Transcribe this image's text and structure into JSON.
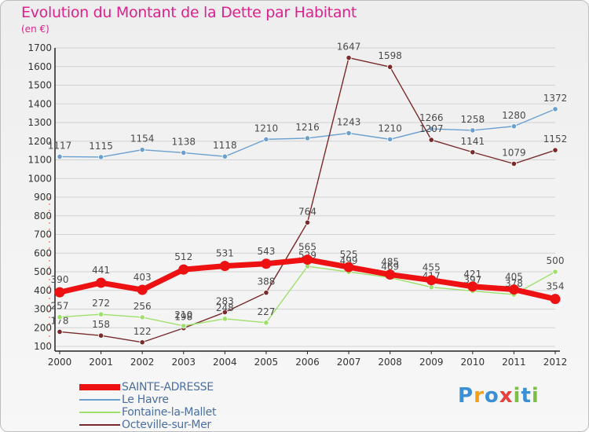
{
  "header": {
    "title": "Evolution du Montant de la Dette par Habitant",
    "subtitle": "(en €)"
  },
  "brand": {
    "logo_chars": [
      "P",
      "r",
      "o",
      "x",
      "i",
      "t",
      "i"
    ],
    "logo_colors": [
      "#3a8fd6",
      "#f0a01a",
      "#3a8fd6",
      "#e8413c",
      "#7ac143",
      "#3a8fd6",
      "#7ac143"
    ]
  },
  "chart_data": {
    "type": "line",
    "title": "Evolution du Montant de la Dette par Habitant",
    "subtitle": "(en €)",
    "xlabel": "",
    "ylabel": "",
    "x": [
      "2000",
      "2001",
      "2002",
      "2003",
      "2004",
      "2005",
      "2006",
      "2007",
      "2008",
      "2009",
      "2010",
      "2011",
      "2012"
    ],
    "ylim": [
      100,
      1700
    ],
    "yticks": [
      100,
      200,
      300,
      400,
      500,
      600,
      700,
      800,
      900,
      1000,
      1100,
      1200,
      1300,
      1400,
      1500,
      1600,
      1700
    ],
    "grid": "horizontal",
    "legend_position": "bottom-left",
    "series": [
      {
        "name": "SAINTE-ADRESSE",
        "color": "#ee1111",
        "values": [
          390,
          441,
          403,
          512,
          531,
          543,
          565,
          525,
          485,
          455,
          421,
          405,
          354
        ],
        "labels": [
          "390",
          "441",
          "403",
          "512",
          "531",
          "543",
          "565",
          "525",
          "485",
          "455",
          "421",
          "405",
          "354"
        ]
      },
      {
        "name": "Le Havre",
        "color": "#6a9fd0",
        "values": [
          1117,
          1115,
          1154,
          1138,
          1118,
          1210,
          1216,
          1243,
          1210,
          1266,
          1258,
          1280,
          1372
        ],
        "labels": [
          "1117",
          "1115",
          "1154",
          "1138",
          "1118",
          "1210",
          "1216",
          "1243",
          "1210",
          "1266",
          "1258",
          "1280",
          "1372"
        ]
      },
      {
        "name": "Fontaine-la-Mallet",
        "color": "#9ee06a",
        "values": [
          257,
          272,
          256,
          210,
          248,
          227,
          529,
          499,
          469,
          417,
          397,
          378,
          500
        ],
        "labels": [
          "257",
          "272",
          "256",
          "210",
          "248",
          "227",
          "529",
          "499",
          "469",
          "417",
          "397",
          "378",
          "500"
        ]
      },
      {
        "name": "Octeville-sur-Mer",
        "color": "#7a2a2a",
        "values": [
          178,
          158,
          122,
          198,
          283,
          388,
          764,
          1647,
          1598,
          1207,
          1141,
          1079,
          1152
        ],
        "labels": [
          "178",
          "158",
          "122",
          "198",
          "283",
          "388",
          "764",
          "1647",
          "1598",
          "1207",
          "1141",
          "1079",
          "1152"
        ]
      }
    ]
  }
}
